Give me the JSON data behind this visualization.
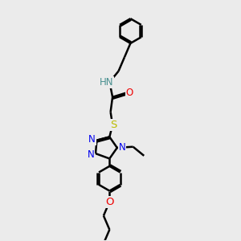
{
  "bg_color": "#ebebeb",
  "bond_color": "#000000",
  "N_color": "#0000ee",
  "O_color": "#ee0000",
  "S_color": "#bbbb00",
  "HN_color": "#4a9090",
  "line_width": 1.8,
  "font_size": 8.5,
  "xlim": [
    0,
    10
  ],
  "ylim": [
    0,
    12
  ]
}
